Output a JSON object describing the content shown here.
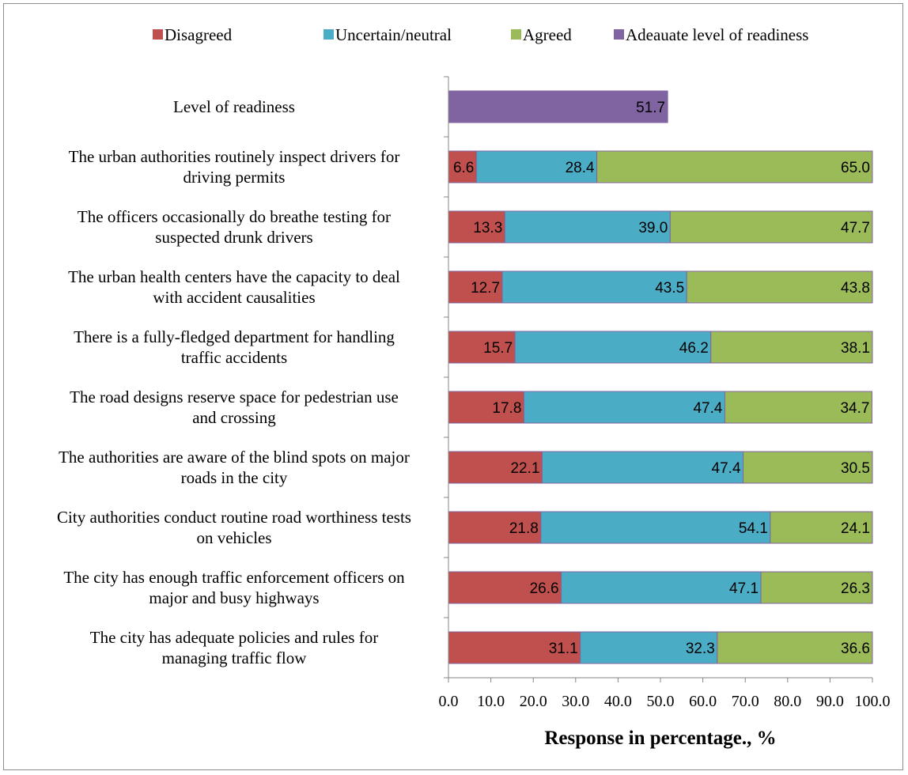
{
  "chart_data": {
    "type": "bar",
    "orientation": "horizontal",
    "stacked": true,
    "categories": [
      "Level of readiness",
      "The urban authorities routinely inspect drivers for driving permits",
      "The officers occasionally do breathe testing for suspected drunk drivers",
      "The urban health centers have the capacity to deal with accident causalities",
      "There is a fully-fledged department for handling traffic accidents",
      "The road designs reserve space for pedestrian use and crossing",
      "The authorities are aware of the blind spots on major roads in the city",
      "City authorities conduct routine road worthiness tests on vehicles",
      "The city has enough traffic enforcement officers on major and busy highways",
      "The city has adequate policies and rules for managing traffic flow"
    ],
    "category_lines": [
      [
        "Level of readiness"
      ],
      [
        "The urban authorities routinely inspect drivers for",
        "driving permits"
      ],
      [
        "The officers occasionally do breathe testing for",
        "suspected drunk drivers"
      ],
      [
        "The urban health centers have the capacity to deal",
        "with accident causalities"
      ],
      [
        "There is a fully-fledged department for handling",
        "traffic accidents"
      ],
      [
        "The road designs reserve space for pedestrian use",
        "and crossing"
      ],
      [
        "The authorities are aware of the blind spots on major",
        "roads in the city"
      ],
      [
        "City authorities conduct routine road worthiness tests",
        "on vehicles"
      ],
      [
        "The city has enough traffic enforcement officers on",
        "major and busy highways"
      ],
      [
        "The city has adequate policies and rules for",
        "managing traffic flow"
      ]
    ],
    "series": [
      {
        "name": "Disagreed",
        "color": "#c0504d",
        "values": [
          null,
          6.6,
          13.3,
          12.7,
          15.7,
          17.8,
          22.1,
          21.8,
          26.6,
          31.1
        ]
      },
      {
        "name": "Uncertain/neutral",
        "color": "#4bacc6",
        "values": [
          null,
          28.4,
          39.0,
          43.5,
          46.2,
          47.4,
          47.4,
          54.1,
          47.1,
          32.3
        ]
      },
      {
        "name": "Agreed",
        "color": "#9bbb59",
        "values": [
          null,
          65.0,
          47.7,
          43.8,
          38.1,
          34.7,
          30.5,
          24.1,
          26.3,
          36.6
        ]
      },
      {
        "name": "Adeauate level of readiness",
        "color": "#8064a2",
        "values": [
          51.7,
          null,
          null,
          null,
          null,
          null,
          null,
          null,
          null,
          null
        ]
      }
    ],
    "xlabel": "Response in percentage., %",
    "ylabel": "",
    "xlim": [
      0,
      100
    ],
    "xticks": [
      "0.0",
      "10.0",
      "20.0",
      "30.0",
      "40.0",
      "50.0",
      "60.0",
      "70.0",
      "80.0",
      "90.0",
      "100.0"
    ],
    "grid": false,
    "legend_position": "top"
  }
}
